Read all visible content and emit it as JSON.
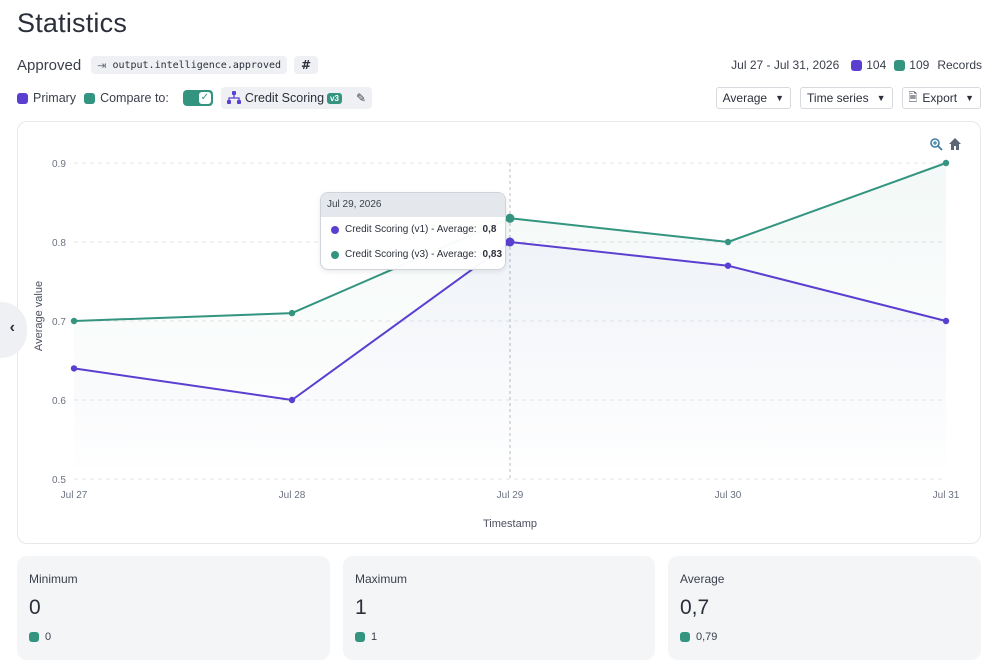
{
  "page": {
    "title": "Statistics"
  },
  "header": {
    "metric_name": "Approved",
    "field_path": "output.intelligence.approved",
    "type_symbol": "#",
    "date_range": "Jul 27 - Jul 31, 2026",
    "primary_count": "104",
    "compare_count": "109",
    "records_label": "Records"
  },
  "controls": {
    "primary_label": "Primary",
    "compare_label": "Compare to:",
    "compare_enabled": true,
    "model_name": "Credit Scoring",
    "model_version": "v3",
    "aggregation": "Average",
    "view_mode": "Time series",
    "export_label": "Export"
  },
  "colors": {
    "primary": "#5b3fd0",
    "compare": "#33957f"
  },
  "icons": [
    "field-link-icon",
    "model-tree-icon",
    "edit-icon",
    "chevron-down-icon",
    "document-icon",
    "zoom-icon",
    "home-icon",
    "chevron-left-icon"
  ],
  "tooltip": {
    "date": "Jul 29, 2026",
    "rows": [
      {
        "label": "Credit Scoring (v1) - Average:",
        "value": "0,8"
      },
      {
        "label": "Credit Scoring (v3) - Average:",
        "value": "0,83"
      }
    ]
  },
  "chart_data": {
    "type": "line",
    "categories": [
      "Jul 27",
      "Jul 28",
      "Jul 29",
      "Jul 30",
      "Jul 31"
    ],
    "series": [
      {
        "name": "Credit Scoring (v1)",
        "values": [
          0.64,
          0.6,
          0.8,
          0.77,
          0.7
        ]
      },
      {
        "name": "Credit Scoring (v3)",
        "values": [
          0.7,
          0.71,
          0.83,
          0.8,
          0.9
        ]
      }
    ],
    "y_ticks": [
      "0.5",
      "0.6",
      "0.7",
      "0.8",
      "0.9"
    ],
    "ylim": [
      0.5,
      0.9
    ],
    "xlabel": "Timestamp",
    "ylabel": "Average value",
    "grid": true,
    "hover_index": 2
  },
  "stats": [
    {
      "label": "Minimum",
      "value": "0",
      "compare": "0"
    },
    {
      "label": "Maximum",
      "value": "1",
      "compare": "1"
    },
    {
      "label": "Average",
      "value": "0,7",
      "compare": "0,79"
    }
  ]
}
